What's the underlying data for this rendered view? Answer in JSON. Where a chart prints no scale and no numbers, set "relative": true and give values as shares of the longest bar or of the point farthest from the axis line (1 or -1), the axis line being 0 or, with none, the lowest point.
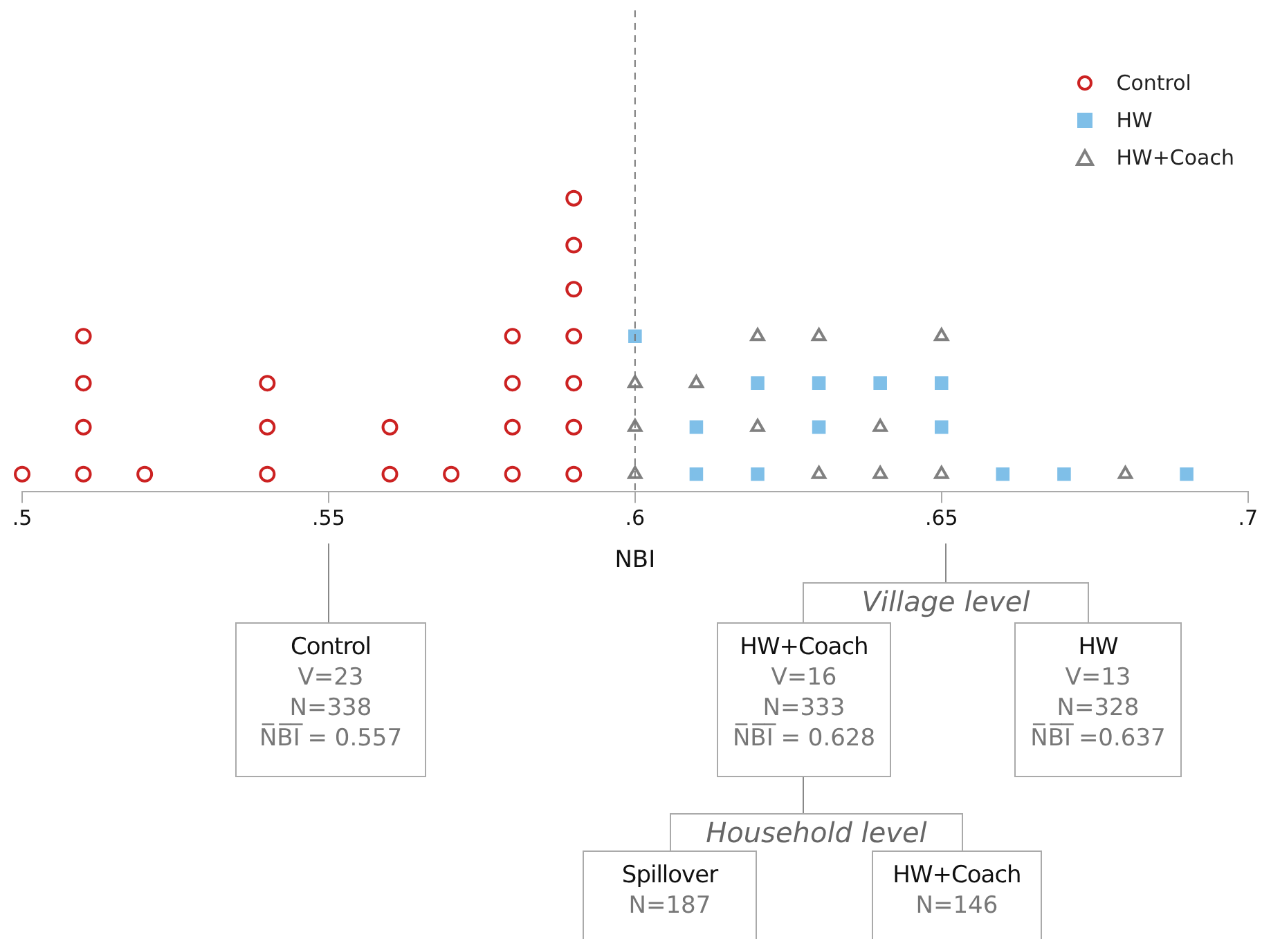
{
  "chart_data": {
    "type": "scatter",
    "xlabel": "NBI",
    "xlim": [
      0.5,
      0.7
    ],
    "xticks": [
      {
        "value": 0.5,
        "label": ".5"
      },
      {
        "value": 0.55,
        "label": ".55"
      },
      {
        "value": 0.6,
        "label": ".6"
      },
      {
        "value": 0.65,
        "label": ".65"
      },
      {
        "value": 0.7,
        "label": ".7"
      }
    ],
    "relative": true,
    "tick_labels": "x",
    "grid": false,
    "legend": "top right",
    "ref_lines": [
      {
        "axis": "x",
        "value": 0.6,
        "line_style": "dashed",
        "color": "#777777"
      }
    ],
    "series": [
      {
        "name": "Control",
        "color": "#cc2222",
        "marker": "circle",
        "x": [
          0.5,
          0.51,
          0.51,
          0.51,
          0.51,
          0.52,
          0.54,
          0.54,
          0.54,
          0.56,
          0.56,
          0.57,
          0.58,
          0.58,
          0.58,
          0.58,
          0.59,
          0.59,
          0.59,
          0.59,
          0.59,
          0.59,
          0.59
        ],
        "values": [
          0.06,
          0.06,
          0.22,
          0.37,
          0.53,
          0.06,
          0.06,
          0.22,
          0.37,
          0.06,
          0.22,
          0.06,
          0.06,
          0.22,
          0.37,
          0.53,
          0.06,
          0.22,
          0.37,
          0.53,
          0.69,
          0.84,
          1
        ]
      },
      {
        "name": "HW",
        "color": "#7fbfe8",
        "marker": "square",
        "x": [
          0.6,
          0.61,
          0.61,
          0.62,
          0.62,
          0.63,
          0.63,
          0.64,
          0.65,
          0.65,
          0.66,
          0.67,
          0.69
        ],
        "values": [
          0.53,
          0.06,
          0.22,
          0.06,
          0.37,
          0.22,
          0.37,
          0.37,
          0.22,
          0.37,
          0.06,
          0.06,
          0.06
        ]
      },
      {
        "name": "HW+Coach",
        "color": "#808080",
        "marker": "triangle",
        "x": [
          0.6,
          0.6,
          0.6,
          0.61,
          0.62,
          0.62,
          0.63,
          0.63,
          0.64,
          0.64,
          0.65,
          0.65,
          0.68
        ],
        "values": [
          0.06,
          0.22,
          0.37,
          0.37,
          0.22,
          0.53,
          0.06,
          0.53,
          0.06,
          0.22,
          0.06,
          0.53,
          0.06
        ]
      }
    ],
    "annotations": [
      "Control\nV=23\nN=338\nN̅B̅I̅ = 0.557",
      "Village level",
      "HW+Coach\nV=16\nN=333\nN̅B̅I̅ = 0.628",
      "HW\nV=13\nN=328\nN̅B̅I̅ =0.637",
      "Household level",
      "Spillover\nN=187",
      "HW+Coach\nN=146"
    ]
  }
}
